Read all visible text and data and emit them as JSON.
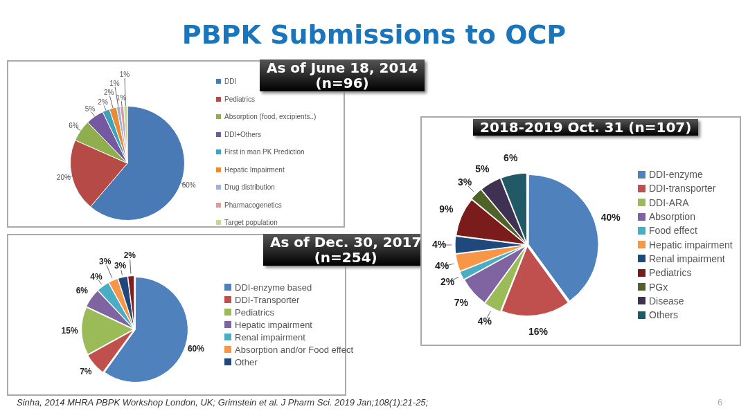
{
  "chart_data": [
    {
      "type": "pie",
      "title": "PBPK Submissions to OCP",
      "subtitle": "As of June 18, 2014\n(n=96)",
      "legend": "right",
      "categories": [
        "DDI",
        "Pediatrics",
        "Absorption (food, excipients..)",
        "DDI+Others",
        "First in man PK Prediction",
        "Hepatic Impairment",
        "Drug distribution",
        "Pharmacogenetics",
        "Target population"
      ],
      "values": [
        60,
        20,
        6,
        5,
        2,
        2,
        1,
        1,
        1
      ],
      "value_labels": [
        "60%",
        "20%",
        "6%",
        "5%",
        "2%",
        "2%",
        "1%",
        "1%",
        "1%"
      ],
      "colors": [
        "#4a7ab5",
        "#b64a47",
        "#8faf4e",
        "#7459a0",
        "#3fa1ba",
        "#e88b34",
        "#9db3da",
        "#dc9c9b",
        "#c3d8a0"
      ]
    },
    {
      "type": "pie",
      "title": "As of Dec. 30, 2017\n(n=254)",
      "legend": "right",
      "categories": [
        "DDI-enzyme based",
        "DDI-Transporter",
        "Pediatrics",
        "Hepatic impairment",
        "Renal impairment",
        "Absorption and/or Food effect",
        "Other",
        null
      ],
      "values": [
        60,
        7,
        15,
        6,
        4,
        3,
        3,
        2
      ],
      "value_labels": [
        "60%",
        "7%",
        "15%",
        "6%",
        "4%",
        "3%",
        "3%",
        "2%"
      ],
      "colors": [
        "#4f81bd",
        "#c0504d",
        "#9bbb59",
        "#8064a2",
        "#4bacc6",
        "#f79646",
        "#1f497d",
        "#7f1f1f"
      ]
    },
    {
      "type": "pie",
      "title": "2018-2019 Oct. 31 (n=107)",
      "legend": "right",
      "categories": [
        "DDI-enzyme",
        "DDI-transporter",
        "DDI-ARA",
        "Absorption",
        "Food effect",
        "Hepatic impairment",
        "Renal impairment",
        "Pediatrics",
        "PGx",
        "Disease",
        "Others"
      ],
      "values": [
        40,
        16,
        4,
        7,
        2,
        4,
        4,
        9,
        3,
        5,
        6
      ],
      "value_labels": [
        "40%",
        "16%",
        "4%",
        "7%",
        "2%",
        "4%",
        "4%",
        "9%",
        "3%",
        "5%",
        "6%"
      ],
      "colors": [
        "#4f81bd",
        "#c0504d",
        "#9bbb59",
        "#8064a2",
        "#4bacc6",
        "#f79646",
        "#1f497d",
        "#7b1c1c",
        "#4f6228",
        "#3f3151",
        "#215967"
      ],
      "annotations": [
        "Sinha, 2014 MHRA PBPK Workshop London, UK; Grimstein et al. J Pharm Sci. 2019 Jan;108(1):21-25;",
        "6"
      ]
    }
  ]
}
